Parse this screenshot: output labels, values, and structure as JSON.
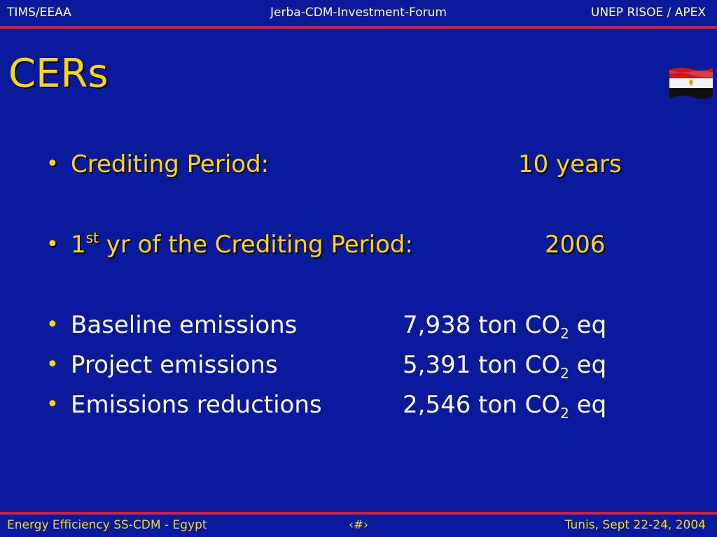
{
  "header": {
    "left": "TIMS/EEAA",
    "center": "Jerba-CDM-Investment-Forum",
    "right": "UNEP RISOE / APEX"
  },
  "slide": {
    "title": "CERs",
    "flag_icon": "egypt-flag-icon",
    "bullets": [
      {
        "label": "Crediting Period:",
        "value": "10 years"
      },
      {
        "label_prefix": "1",
        "label_sup": "st",
        "label_rest": " yr of the Crediting Period:",
        "value": "2006"
      },
      {
        "label": "Baseline emissions",
        "value_pre": "7,938 ton CO",
        "value_sub": "2",
        "value_post": " eq"
      },
      {
        "label": "Project emissions",
        "value_pre": "5,391 ton CO",
        "value_sub": "2",
        "value_post": " eq"
      },
      {
        "label": "Emissions reductions",
        "value_pre": "2,546 ton CO",
        "value_sub": "2",
        "value_post": " eq"
      }
    ]
  },
  "footer": {
    "left": "Energy Efficiency SS-CDM - Egypt",
    "center": "‹#›",
    "right": "Tunis,  Sept 22-24, 2004"
  },
  "colors": {
    "background": "#0a1a9c",
    "accent_yellow": "#ffd800",
    "rule_red": "#e01b2a",
    "text_white": "#ffffff"
  }
}
